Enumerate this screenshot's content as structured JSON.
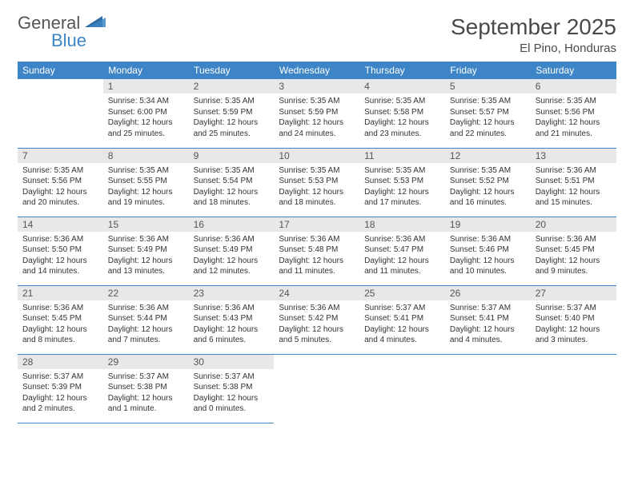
{
  "logo": {
    "text1": "General",
    "text2": "Blue"
  },
  "title": "September 2025",
  "location": "El Pino, Honduras",
  "colors": {
    "header_bg": "#3d85c6",
    "header_text": "#ffffff",
    "daynum_bg": "#e8e8e8",
    "border": "#3d85c6",
    "body_text": "#333333",
    "logo_gray": "#555555",
    "logo_blue": "#3d85c6"
  },
  "weekdays": [
    "Sunday",
    "Monday",
    "Tuesday",
    "Wednesday",
    "Thursday",
    "Friday",
    "Saturday"
  ],
  "grid": {
    "start_weekday": 1,
    "num_days": 30
  },
  "days": {
    "1": {
      "sunrise": "5:34 AM",
      "sunset": "6:00 PM",
      "daylight": "12 hours and 25 minutes."
    },
    "2": {
      "sunrise": "5:35 AM",
      "sunset": "5:59 PM",
      "daylight": "12 hours and 25 minutes."
    },
    "3": {
      "sunrise": "5:35 AM",
      "sunset": "5:59 PM",
      "daylight": "12 hours and 24 minutes."
    },
    "4": {
      "sunrise": "5:35 AM",
      "sunset": "5:58 PM",
      "daylight": "12 hours and 23 minutes."
    },
    "5": {
      "sunrise": "5:35 AM",
      "sunset": "5:57 PM",
      "daylight": "12 hours and 22 minutes."
    },
    "6": {
      "sunrise": "5:35 AM",
      "sunset": "5:56 PM",
      "daylight": "12 hours and 21 minutes."
    },
    "7": {
      "sunrise": "5:35 AM",
      "sunset": "5:56 PM",
      "daylight": "12 hours and 20 minutes."
    },
    "8": {
      "sunrise": "5:35 AM",
      "sunset": "5:55 PM",
      "daylight": "12 hours and 19 minutes."
    },
    "9": {
      "sunrise": "5:35 AM",
      "sunset": "5:54 PM",
      "daylight": "12 hours and 18 minutes."
    },
    "10": {
      "sunrise": "5:35 AM",
      "sunset": "5:53 PM",
      "daylight": "12 hours and 18 minutes."
    },
    "11": {
      "sunrise": "5:35 AM",
      "sunset": "5:53 PM",
      "daylight": "12 hours and 17 minutes."
    },
    "12": {
      "sunrise": "5:35 AM",
      "sunset": "5:52 PM",
      "daylight": "12 hours and 16 minutes."
    },
    "13": {
      "sunrise": "5:36 AM",
      "sunset": "5:51 PM",
      "daylight": "12 hours and 15 minutes."
    },
    "14": {
      "sunrise": "5:36 AM",
      "sunset": "5:50 PM",
      "daylight": "12 hours and 14 minutes."
    },
    "15": {
      "sunrise": "5:36 AM",
      "sunset": "5:49 PM",
      "daylight": "12 hours and 13 minutes."
    },
    "16": {
      "sunrise": "5:36 AM",
      "sunset": "5:49 PM",
      "daylight": "12 hours and 12 minutes."
    },
    "17": {
      "sunrise": "5:36 AM",
      "sunset": "5:48 PM",
      "daylight": "12 hours and 11 minutes."
    },
    "18": {
      "sunrise": "5:36 AM",
      "sunset": "5:47 PM",
      "daylight": "12 hours and 11 minutes."
    },
    "19": {
      "sunrise": "5:36 AM",
      "sunset": "5:46 PM",
      "daylight": "12 hours and 10 minutes."
    },
    "20": {
      "sunrise": "5:36 AM",
      "sunset": "5:45 PM",
      "daylight": "12 hours and 9 minutes."
    },
    "21": {
      "sunrise": "5:36 AM",
      "sunset": "5:45 PM",
      "daylight": "12 hours and 8 minutes."
    },
    "22": {
      "sunrise": "5:36 AM",
      "sunset": "5:44 PM",
      "daylight": "12 hours and 7 minutes."
    },
    "23": {
      "sunrise": "5:36 AM",
      "sunset": "5:43 PM",
      "daylight": "12 hours and 6 minutes."
    },
    "24": {
      "sunrise": "5:36 AM",
      "sunset": "5:42 PM",
      "daylight": "12 hours and 5 minutes."
    },
    "25": {
      "sunrise": "5:37 AM",
      "sunset": "5:41 PM",
      "daylight": "12 hours and 4 minutes."
    },
    "26": {
      "sunrise": "5:37 AM",
      "sunset": "5:41 PM",
      "daylight": "12 hours and 4 minutes."
    },
    "27": {
      "sunrise": "5:37 AM",
      "sunset": "5:40 PM",
      "daylight": "12 hours and 3 minutes."
    },
    "28": {
      "sunrise": "5:37 AM",
      "sunset": "5:39 PM",
      "daylight": "12 hours and 2 minutes."
    },
    "29": {
      "sunrise": "5:37 AM",
      "sunset": "5:38 PM",
      "daylight": "12 hours and 1 minute."
    },
    "30": {
      "sunrise": "5:37 AM",
      "sunset": "5:38 PM",
      "daylight": "12 hours and 0 minutes."
    }
  },
  "labels": {
    "sunrise": "Sunrise:",
    "sunset": "Sunset:",
    "daylight": "Daylight:"
  }
}
